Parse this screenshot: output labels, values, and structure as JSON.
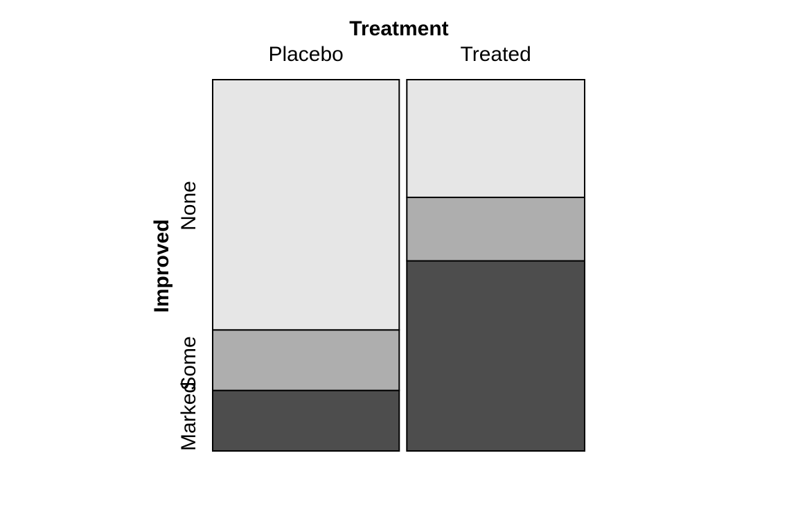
{
  "chart_data": {
    "type": "mosaic",
    "x_variable": "Treatment",
    "y_variable": "Improved",
    "columns": [
      "Placebo",
      "Treated"
    ],
    "rows": [
      "Marked",
      "Some",
      "None"
    ],
    "column_proportions": [
      0.512,
      0.488
    ],
    "cell_proportions": {
      "Placebo": {
        "Marked": 0.163,
        "Some": 0.163,
        "None": 0.674
      },
      "Treated": {
        "Marked": 0.512,
        "Some": 0.171,
        "None": 0.317
      }
    },
    "fill_colors": {
      "Marked": "#4d4d4d",
      "Some": "#aeaeae",
      "None": "#e6e6e6"
    },
    "border_color": "#000000"
  }
}
